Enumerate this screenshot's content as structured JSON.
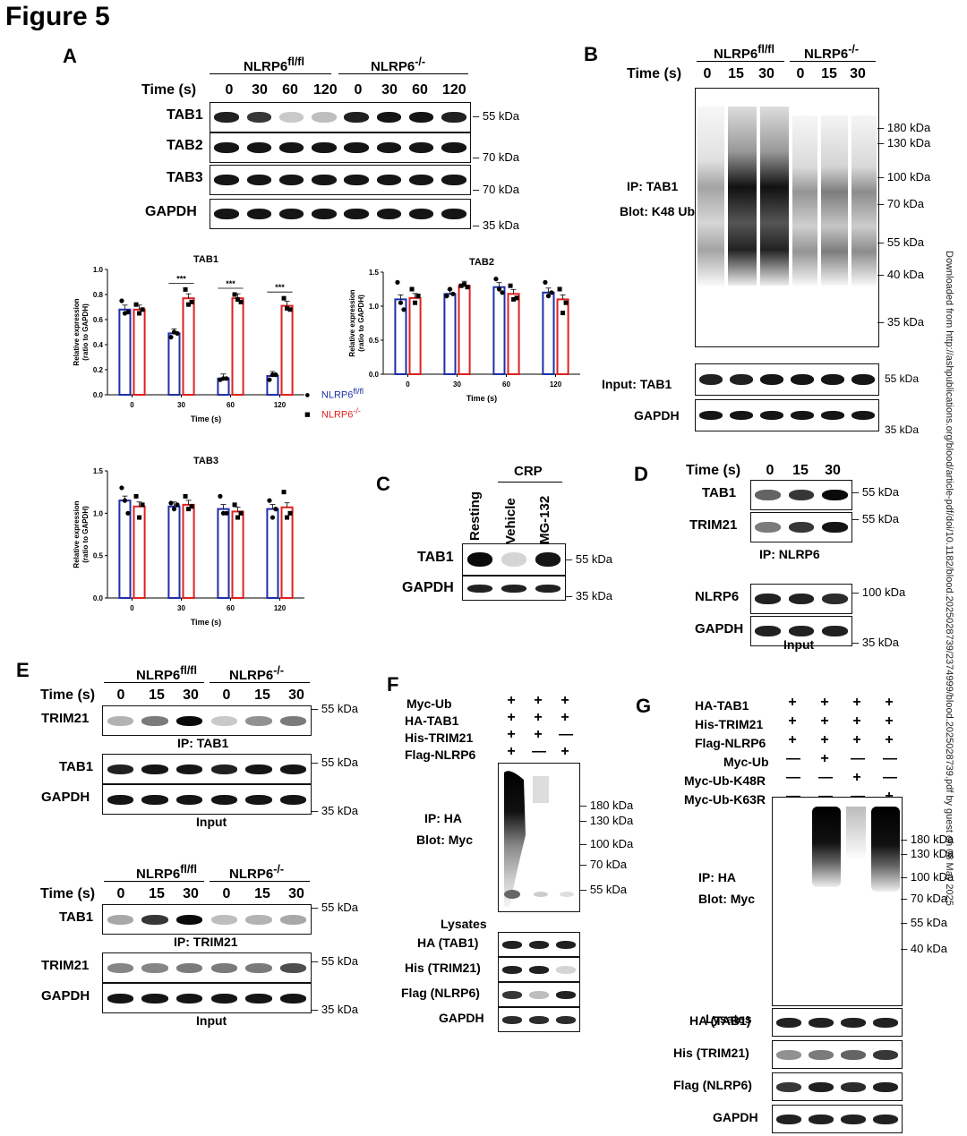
{
  "figure_title": "Figure 5",
  "watermark": "Downloaded from http://ashpublications.org/blood/article-pdf/doi/10.1182/blood.2025028739/2374999/blood.2025028739.pdf by guest on 08 May 2025",
  "panelA": {
    "label": "A",
    "group1": "NLRP6fl/fl",
    "group2": "NLRP6-/-",
    "time_label": "Time (s)",
    "times": [
      "0",
      "30",
      "60",
      "120",
      "0",
      "30",
      "60",
      "120"
    ],
    "rows": [
      "TAB1",
      "TAB2",
      "TAB3",
      "GAPDH"
    ],
    "mw": [
      "55 kDa",
      "70 kDa",
      "70 kDa",
      "35 kDa"
    ]
  },
  "panelB": {
    "label": "B",
    "group1": "NLRP6fl/fl",
    "group2": "NLRP6-/-",
    "time_label": "Time (s)",
    "times": [
      "0",
      "15",
      "30",
      "0",
      "15",
      "30"
    ],
    "ip_text": "IP: TAB1",
    "blot_text": "Blot: K48 Ub",
    "mw": [
      "180 kDa",
      "130 kDa",
      "100 kDa",
      "70 kDa",
      "55 kDa",
      "40 kDa",
      "35 kDa"
    ],
    "input_label": "Input: TAB1",
    "gapdh_label": "GAPDH",
    "mw_input": "55 kDa",
    "mw_gapdh": "35 kDa"
  },
  "panelC": {
    "label": "C",
    "crp": "CRP",
    "lanes": [
      "Resting",
      "Vehicle",
      "MG-132"
    ],
    "rows": [
      "TAB1",
      "GAPDH"
    ],
    "mw": [
      "55 kDa",
      "35 kDa"
    ]
  },
  "panelD": {
    "label": "D",
    "time_label": "Time (s)",
    "times": [
      "0",
      "15",
      "30"
    ],
    "rows": [
      "TAB1",
      "TRIM21",
      "NLRP6",
      "GAPDH"
    ],
    "mw": [
      "55 kDa",
      "55 kDa",
      "100 kDa",
      "35 kDa"
    ],
    "ip_text": "IP: NLRP6",
    "input_text": "Input"
  },
  "panelE": {
    "label": "E",
    "group1": "NLRP6fl/fl",
    "group2": "NLRP6-/-",
    "time_label": "Time (s)",
    "times": [
      "0",
      "15",
      "30",
      "0",
      "15",
      "30"
    ],
    "top_rows": [
      "TRIM21",
      "TAB1",
      "GAPDH"
    ],
    "top_mw": [
      "55 kDa",
      "55 kDa",
      "35 kDa"
    ],
    "ip1": "IP: TAB1",
    "input1": "Input",
    "bottom_rows": [
      "TAB1",
      "TRIM21",
      "GAPDH"
    ],
    "bottom_mw": [
      "55 kDa",
      "55 kDa",
      "35 kDa"
    ],
    "ip2": "IP: TRIM21",
    "input2": "Input"
  },
  "panelF": {
    "label": "F",
    "conditions": [
      "Myc-Ub",
      "HA-TAB1",
      "His-TRIM21",
      "Flag-NLRP6"
    ],
    "signs": [
      [
        "+",
        "+",
        "+"
      ],
      [
        "+",
        "+",
        "+"
      ],
      [
        "+",
        "+",
        "—"
      ],
      [
        "+",
        "—",
        "+"
      ]
    ],
    "ip_text": "IP: HA",
    "blot_text": "Blot: Myc",
    "mw": [
      "180 kDa",
      "130 kDa",
      "100 kDa",
      "70 kDa",
      "55 kDa"
    ],
    "lysates": "Lysates",
    "rows": [
      "HA (TAB1)",
      "His (TRIM21)",
      "Flag (NLRP6)",
      "GAPDH"
    ]
  },
  "panelG": {
    "label": "G",
    "conditions": [
      "HA-TAB1",
      "His-TRIM21",
      "Flag-NLRP6",
      "Myc-Ub",
      "Myc-Ub-K48R",
      "Myc-Ub-K63R"
    ],
    "signs": [
      [
        "+",
        "+",
        "+",
        "+"
      ],
      [
        "+",
        "+",
        "+",
        "+"
      ],
      [
        "+",
        "+",
        "+",
        "+"
      ],
      [
        "—",
        "+",
        "—",
        "—"
      ],
      [
        "—",
        "—",
        "+",
        "—"
      ],
      [
        "—",
        "—",
        "—",
        "+"
      ]
    ],
    "ip_text": "IP: HA",
    "blot_text": "Blot: Myc",
    "mw": [
      "180 kDa",
      "130 kDa",
      "100 kDa",
      "70 kDa",
      "55 kDa",
      "40 kDa"
    ],
    "lysates": "Lysates",
    "rows": [
      "HA (TAB1)",
      "His (TRIM21)",
      "Flag (NLRP6)",
      "GAPDH"
    ]
  },
  "chart_data": [
    {
      "type": "bar",
      "title": "TAB1",
      "xlabel": "Time (s)",
      "ylabel": "Relative expression (ratio to GAPDH)",
      "categories": [
        "0",
        "30",
        "60",
        "120"
      ],
      "ylim": [
        0,
        1.0
      ],
      "yticks": [
        "0.0",
        "0.2",
        "0.4",
        "0.6",
        "0.8",
        "1.0"
      ],
      "series": [
        {
          "name": "NLRP6fl/fl",
          "color": "#1f2fa8",
          "values": [
            0.68,
            0.49,
            0.13,
            0.15
          ],
          "points": [
            [
              0.75,
              0.65,
              0.66
            ],
            [
              0.46,
              0.5,
              0.49
            ],
            [
              0.12,
              0.13,
              0.13
            ],
            [
              0.12,
              0.16,
              0.16
            ]
          ]
        },
        {
          "name": "NLRP6-/-",
          "color": "#e02020",
          "values": [
            0.68,
            0.77,
            0.77,
            0.71
          ],
          "points": [
            [
              0.72,
              0.65,
              0.68
            ],
            [
              0.84,
              0.72,
              0.74
            ],
            [
              0.8,
              0.76,
              0.74
            ],
            [
              0.77,
              0.69,
              0.68
            ]
          ]
        }
      ],
      "significance": [
        "***",
        "***",
        "***"
      ]
    },
    {
      "type": "bar",
      "title": "TAB2",
      "xlabel": "Time (s)",
      "ylabel": "Relative expression (ratio to GAPDH)",
      "categories": [
        "0",
        "30",
        "60",
        "120"
      ],
      "ylim": [
        0,
        1.5
      ],
      "yticks": [
        "0.0",
        "0.5",
        "1.0",
        "1.5"
      ],
      "series": [
        {
          "name": "NLRP6fl/fl",
          "color": "#1f2fa8",
          "values": [
            1.1,
            1.18,
            1.28,
            1.2
          ],
          "points": [
            [
              1.35,
              1.05,
              0.95
            ],
            [
              1.15,
              1.25,
              1.18
            ],
            [
              1.4,
              1.25,
              1.2
            ],
            [
              1.35,
              1.15,
              1.2
            ]
          ]
        },
        {
          "name": "NLRP6-/-",
          "color": "#e02020",
          "values": [
            1.12,
            1.3,
            1.18,
            1.1
          ],
          "points": [
            [
              1.25,
              1.05,
              1.15
            ],
            [
              1.3,
              1.32,
              1.28
            ],
            [
              1.3,
              1.1,
              1.12
            ],
            [
              1.25,
              0.9,
              1.05
            ]
          ]
        }
      ]
    },
    {
      "type": "bar",
      "title": "TAB3",
      "xlabel": "Time (s)",
      "ylabel": "Relative expression (ratio to GAPDH)",
      "categories": [
        "0",
        "30",
        "60",
        "120"
      ],
      "ylim": [
        0,
        1.5
      ],
      "yticks": [
        "0.0",
        "0.5",
        "1.0",
        "1.5"
      ],
      "series": [
        {
          "name": "NLRP6fl/fl",
          "color": "#1f2fa8",
          "values": [
            1.15,
            1.08,
            1.05,
            1.05
          ],
          "points": [
            [
              1.3,
              1.15,
              1.0
            ],
            [
              1.12,
              1.05,
              1.1
            ],
            [
              1.2,
              1.0,
              1.0
            ],
            [
              1.15,
              0.95,
              1.05
            ]
          ]
        },
        {
          "name": "NLRP6-/-",
          "color": "#e02020",
          "values": [
            1.08,
            1.1,
            1.02,
            1.07
          ],
          "points": [
            [
              1.2,
              0.95,
              1.1
            ],
            [
              1.2,
              1.05,
              1.08
            ],
            [
              1.1,
              0.95,
              1.0
            ],
            [
              1.25,
              0.95,
              1.0
            ]
          ]
        }
      ]
    }
  ]
}
